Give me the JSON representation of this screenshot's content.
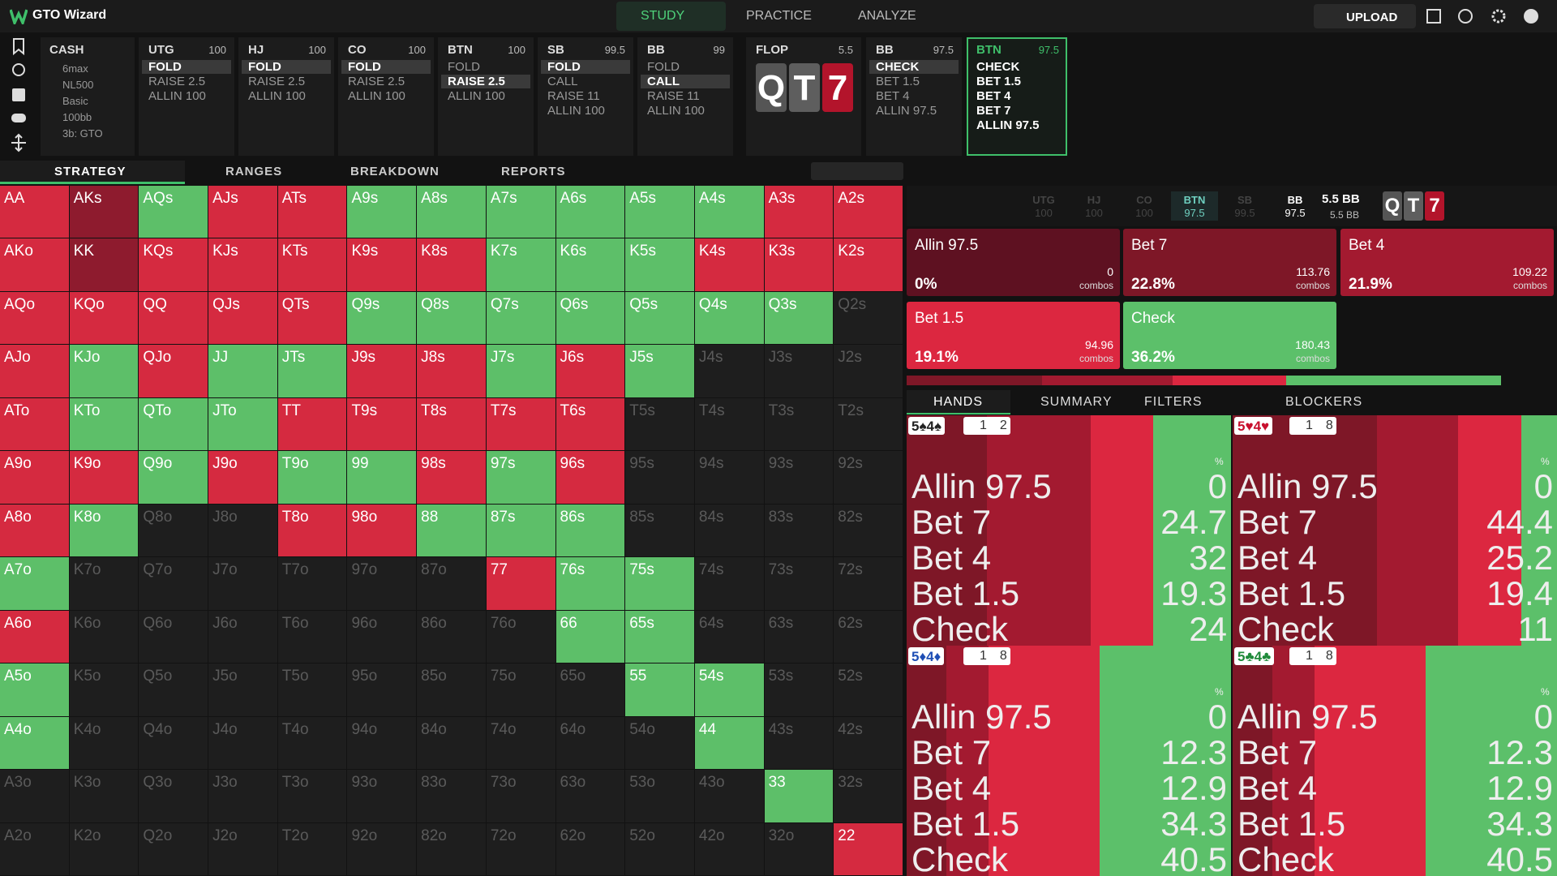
{
  "app": {
    "logo": "GTO Wizard",
    "nav": [
      "STUDY",
      "PRACTICE",
      "ANALYZE"
    ],
    "nav_active": 0,
    "upload": "UPLOAD"
  },
  "game": {
    "title": "CASH",
    "tags": [
      "6max",
      "NL500",
      "Basic",
      "100bb",
      "3b: GTO"
    ]
  },
  "preflop": [
    {
      "name": "UTG",
      "stack": "100",
      "options": [
        "FOLD",
        "RAISE 2.5",
        "ALLIN 100"
      ],
      "selected": 0
    },
    {
      "name": "HJ",
      "stack": "100",
      "options": [
        "FOLD",
        "RAISE 2.5",
        "ALLIN 100"
      ],
      "selected": 0
    },
    {
      "name": "CO",
      "stack": "100",
      "options": [
        "FOLD",
        "RAISE 2.5",
        "ALLIN 100"
      ],
      "selected": 0
    },
    {
      "name": "BTN",
      "stack": "100",
      "options": [
        "FOLD",
        "RAISE 2.5",
        "ALLIN 100"
      ],
      "selected": 1
    },
    {
      "name": "SB",
      "stack": "99.5",
      "options": [
        "FOLD",
        "CALL",
        "RAISE 11",
        "ALLIN 100"
      ],
      "selected": 0
    },
    {
      "name": "BB",
      "stack": "99",
      "options": [
        "FOLD",
        "CALL",
        "RAISE 11",
        "ALLIN 100"
      ],
      "selected": 1
    }
  ],
  "flop": {
    "name": "FLOP",
    "pot": "5.5",
    "cards": [
      {
        "rank": "Q",
        "color": "#555555"
      },
      {
        "rank": "T",
        "color": "#5e5e5e"
      },
      {
        "rank": "7",
        "color": "#b3142b"
      }
    ]
  },
  "postflop": [
    {
      "name": "BB",
      "stack": "97.5",
      "options": [
        "CHECK",
        "BET 1.5",
        "BET 4",
        "ALLIN 97.5"
      ],
      "selected": 0,
      "current": false
    },
    {
      "name": "BTN",
      "stack": "97.5",
      "options": [
        "CHECK",
        "BET 1.5",
        "BET 4",
        "BET 7",
        "ALLIN 97.5"
      ],
      "selected": -1,
      "current": true
    }
  ],
  "tabs": [
    "STRATEGY",
    "RANGES",
    "BREAKDOWN",
    "REPORTS"
  ],
  "tab_active": 0,
  "matrix": {
    "palette": {
      "red": "#d52a40",
      "dark": "#8e1b2e",
      "green": "#5dbf69",
      "none": "#1e1e1e"
    },
    "hands": [
      [
        "AA",
        "AKs",
        "AQs",
        "AJs",
        "ATs",
        "A9s",
        "A8s",
        "A7s",
        "A6s",
        "A5s",
        "A4s",
        "A3s",
        "A2s"
      ],
      [
        "AKo",
        "KK",
        "KQs",
        "KJs",
        "KTs",
        "K9s",
        "K8s",
        "K7s",
        "K6s",
        "K5s",
        "K4s",
        "K3s",
        "K2s"
      ],
      [
        "AQo",
        "KQo",
        "QQ",
        "QJs",
        "QTs",
        "Q9s",
        "Q8s",
        "Q7s",
        "Q6s",
        "Q5s",
        "Q4s",
        "Q3s",
        "Q2s"
      ],
      [
        "AJo",
        "KJo",
        "QJo",
        "JJ",
        "JTs",
        "J9s",
        "J8s",
        "J7s",
        "J6s",
        "J5s",
        "J4s",
        "J3s",
        "J2s"
      ],
      [
        "ATo",
        "KTo",
        "QTo",
        "JTo",
        "TT",
        "T9s",
        "T8s",
        "T7s",
        "T6s",
        "T5s",
        "T4s",
        "T3s",
        "T2s"
      ],
      [
        "A9o",
        "K9o",
        "Q9o",
        "J9o",
        "T9o",
        "99",
        "98s",
        "97s",
        "96s",
        "95s",
        "94s",
        "93s",
        "92s"
      ],
      [
        "A8o",
        "K8o",
        "Q8o",
        "J8o",
        "T8o",
        "98o",
        "88",
        "87s",
        "86s",
        "85s",
        "84s",
        "83s",
        "82s"
      ],
      [
        "A7o",
        "K7o",
        "Q7o",
        "J7o",
        "T7o",
        "97o",
        "87o",
        "77",
        "76s",
        "75s",
        "74s",
        "73s",
        "72s"
      ],
      [
        "A6o",
        "K6o",
        "Q6o",
        "J6o",
        "T6o",
        "96o",
        "86o",
        "76o",
        "66",
        "65s",
        "64s",
        "63s",
        "62s"
      ],
      [
        "A5o",
        "K5o",
        "Q5o",
        "J5o",
        "T5o",
        "95o",
        "85o",
        "75o",
        "65o",
        "55",
        "54s",
        "53s",
        "52s"
      ],
      [
        "A4o",
        "K4o",
        "Q4o",
        "J4o",
        "T4o",
        "94o",
        "84o",
        "74o",
        "64o",
        "54o",
        "44",
        "43s",
        "42s"
      ],
      [
        "A3o",
        "K3o",
        "Q3o",
        "J3o",
        "T3o",
        "93o",
        "83o",
        "73o",
        "63o",
        "53o",
        "43o",
        "33",
        "32s"
      ],
      [
        "A2o",
        "K2o",
        "Q2o",
        "J2o",
        "T2o",
        "92o",
        "82o",
        "72o",
        "62o",
        "52o",
        "42o",
        "32o",
        "22"
      ]
    ],
    "colors": [
      [
        "red",
        "dark",
        "green",
        "red",
        "red",
        "green",
        "green",
        "green",
        "green",
        "green",
        "green",
        "red",
        "red"
      ],
      [
        "red",
        "dark",
        "red",
        "red",
        "red",
        "red",
        "red",
        "green",
        "green",
        "green",
        "red",
        "red",
        "red"
      ],
      [
        "red",
        "red",
        "red",
        "red",
        "red",
        "green",
        "green",
        "green",
        "green",
        "green",
        "green",
        "green",
        "none"
      ],
      [
        "red",
        "green",
        "red",
        "green",
        "green",
        "red",
        "red",
        "green",
        "red",
        "green",
        "none",
        "none",
        "none"
      ],
      [
        "red",
        "green",
        "green",
        "green",
        "red",
        "red",
        "red",
        "red",
        "red",
        "none",
        "none",
        "none",
        "none"
      ],
      [
        "red",
        "red",
        "green",
        "red",
        "green",
        "green",
        "red",
        "green",
        "red",
        "none",
        "none",
        "none",
        "none"
      ],
      [
        "red",
        "green",
        "none",
        "none",
        "red",
        "red",
        "green",
        "green",
        "green",
        "none",
        "none",
        "none",
        "none"
      ],
      [
        "green",
        "none",
        "none",
        "none",
        "none",
        "none",
        "none",
        "red",
        "green",
        "green",
        "none",
        "none",
        "none"
      ],
      [
        "red",
        "none",
        "none",
        "none",
        "none",
        "none",
        "none",
        "none",
        "green",
        "green",
        "none",
        "none",
        "none"
      ],
      [
        "green",
        "none",
        "none",
        "none",
        "none",
        "none",
        "none",
        "none",
        "none",
        "green",
        "green",
        "none",
        "none"
      ],
      [
        "green",
        "none",
        "none",
        "none",
        "none",
        "none",
        "none",
        "none",
        "none",
        "none",
        "green",
        "none",
        "none"
      ],
      [
        "none",
        "none",
        "none",
        "none",
        "none",
        "none",
        "none",
        "none",
        "none",
        "none",
        "none",
        "green",
        "none"
      ],
      [
        "none",
        "none",
        "none",
        "none",
        "none",
        "none",
        "none",
        "none",
        "none",
        "none",
        "none",
        "none",
        "red"
      ]
    ]
  },
  "summary": {
    "players": [
      {
        "name": "UTG",
        "stack": "100",
        "status": "folded"
      },
      {
        "name": "HJ",
        "stack": "100",
        "status": "folded"
      },
      {
        "name": "CO",
        "stack": "100",
        "status": "folded"
      },
      {
        "name": "BTN",
        "stack": "97.5",
        "status": "acting"
      },
      {
        "name": "SB",
        "stack": "99.5",
        "status": "folded"
      },
      {
        "name": "BB",
        "stack": "97.5",
        "status": "in"
      }
    ],
    "pot": "5.5 BB",
    "pot_sub": "5.5 BB"
  },
  "strategy": [
    {
      "name": "Allin 97.5",
      "freq": 0,
      "freq_label": "0%",
      "combos": "0",
      "color": "#5e1121"
    },
    {
      "name": "Bet 7",
      "freq": 22.8,
      "freq_label": "22.8%",
      "combos": "113.76",
      "color": "#7e1727"
    },
    {
      "name": "Bet 4",
      "freq": 21.9,
      "freq_label": "21.9%",
      "combos": "109.22",
      "color": "#a31a30"
    },
    {
      "name": "Bet 1.5",
      "freq": 19.1,
      "freq_label": "19.1%",
      "combos": "94.96",
      "color": "#dc2740"
    },
    {
      "name": "Check",
      "freq": 36.2,
      "freq_label": "36.2%",
      "combos": "180.43",
      "color": "#5cc06a"
    }
  ],
  "combos_unit": "combos",
  "detail_tabs": [
    "HANDS",
    "SUMMARY",
    "FILTERS",
    "BLOCKERS"
  ],
  "detail_active": 0,
  "percent_sign": "%",
  "hand_details": [
    {
      "cards": [
        {
          "rank": "5",
          "suit": "♠",
          "color": "#222222"
        },
        {
          "rank": "4",
          "suit": "♠",
          "color": "#222222"
        }
      ],
      "blockers": [
        "1",
        "2"
      ],
      "values": [
        0,
        24.7,
        32,
        19.3,
        24
      ]
    },
    {
      "cards": [
        {
          "rank": "5",
          "suit": "♥",
          "color": "#c8102e"
        },
        {
          "rank": "4",
          "suit": "♥",
          "color": "#c8102e"
        }
      ],
      "blockers": [
        "1",
        "8"
      ],
      "values": [
        0,
        44.4,
        25.2,
        19.4,
        11
      ]
    },
    {
      "cards": [
        {
          "rank": "5",
          "suit": "♦",
          "color": "#1f4fb5"
        },
        {
          "rank": "4",
          "suit": "♦",
          "color": "#1f4fb5"
        }
      ],
      "blockers": [
        "1",
        "8"
      ],
      "values": [
        0,
        12.3,
        12.9,
        34.3,
        40.5
      ]
    },
    {
      "cards": [
        {
          "rank": "5",
          "suit": "♣",
          "color": "#1f8a3a"
        },
        {
          "rank": "4",
          "suit": "♣",
          "color": "#1f8a3a"
        }
      ],
      "blockers": [
        "1",
        "8"
      ],
      "values": [
        0,
        12.3,
        12.9,
        34.3,
        40.5
      ]
    }
  ]
}
